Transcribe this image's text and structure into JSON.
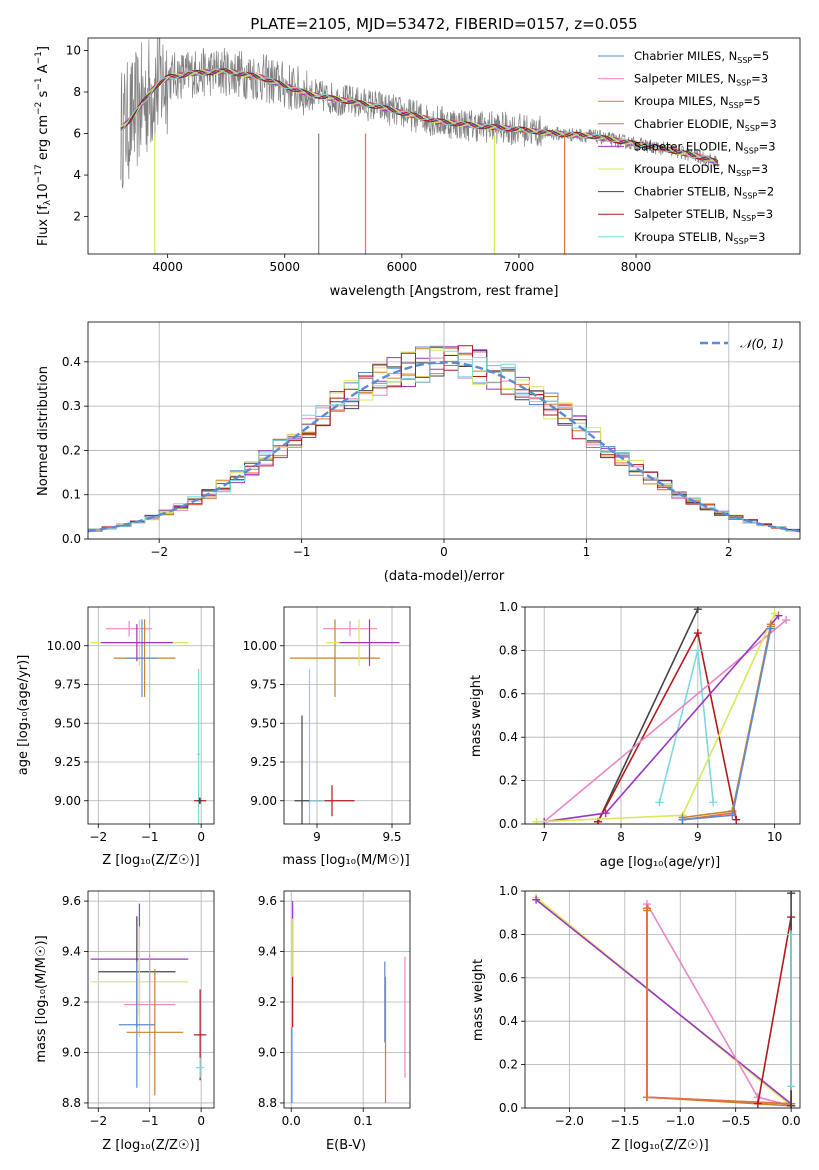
{
  "chart_data": [
    {
      "id": "spectrum",
      "type": "line",
      "title": "PLATE=2105, MJD=53472, FIBERID=0157, z=0.055",
      "xlabel": "wavelength [Angstrom, rest frame]",
      "ylabel_parts": [
        "Flux [f",
        "λ",
        "10",
        "−17",
        " erg cm",
        "−2",
        " s",
        "−1",
        " A",
        "−1",
        "]"
      ],
      "xlim": [
        3320,
        9400
      ],
      "ylim": [
        0.2,
        10.6
      ],
      "xticks": [
        4000,
        5000,
        6000,
        7000,
        8000
      ],
      "yticks": [
        2,
        4,
        6,
        8,
        10
      ],
      "grid": false,
      "legend_position": "top-right",
      "legend": [
        {
          "base": "Chabrier MILES, N",
          "sub": "SSP",
          "tail": "=5",
          "color": "#5b8bd6"
        },
        {
          "base": "Salpeter MILES, N",
          "sub": "SSP",
          "tail": "=3",
          "color": "#e887c4"
        },
        {
          "base": "Kroupa MILES, N",
          "sub": "SSP",
          "tail": "=5",
          "color": "#c8822a"
        },
        {
          "base": "Chabrier ELODIE, N",
          "sub": "SSP",
          "tail": "=3",
          "color": "#e8703a"
        },
        {
          "base": "Salpeter ELODIE, N",
          "sub": "SSP",
          "tail": "=3",
          "color": "#9b36c4"
        },
        {
          "base": "Kroupa ELODIE, N",
          "sub": "SSP",
          "tail": "=3",
          "color": "#d8e85a"
        },
        {
          "base": "Chabrier STELIB, N",
          "sub": "SSP",
          "tail": "=2",
          "color": "#444444"
        },
        {
          "base": "Salpeter STELIB, N",
          "sub": "SSP",
          "tail": "=3",
          "color": "#b01a1a"
        },
        {
          "base": "Kroupa STELIB, N",
          "sub": "SSP",
          "tail": "=3",
          "color": "#7dd8e0"
        }
      ],
      "observed_color": "#808080",
      "continuum": [
        [
          3600,
          6.2
        ],
        [
          3700,
          6.8
        ],
        [
          3800,
          7.6
        ],
        [
          3900,
          8.3
        ],
        [
          4000,
          8.7
        ],
        [
          4200,
          8.9
        ],
        [
          4500,
          9.0
        ],
        [
          4800,
          8.7
        ],
        [
          5000,
          8.3
        ],
        [
          5200,
          7.9
        ],
        [
          5500,
          7.6
        ],
        [
          5800,
          7.3
        ],
        [
          6000,
          7.0
        ],
        [
          6300,
          6.6
        ],
        [
          6600,
          6.4
        ],
        [
          7000,
          6.2
        ],
        [
          7300,
          6.0
        ],
        [
          7600,
          5.9
        ],
        [
          8000,
          5.5
        ],
        [
          8300,
          5.2
        ],
        [
          8600,
          4.8
        ],
        [
          8700,
          4.6
        ]
      ]
    },
    {
      "id": "residuals",
      "type": "line",
      "xlabel": "(data-model)/error",
      "ylabel": "Normed distribution",
      "xlim": [
        -2.5,
        2.5
      ],
      "ylim": [
        0.0,
        0.49
      ],
      "xticks": [
        -2,
        -1,
        0,
        1,
        2
      ],
      "yticks": [
        0.0,
        0.1,
        0.2,
        0.3,
        0.4
      ],
      "grid": true,
      "legend_position": "top-right",
      "normal_label": "𝒩(0, 1)",
      "normal_color": "#5b8bd6",
      "bin_width": 0.1,
      "series": [
        {
          "name": "Chabrier MILES",
          "color": "#5b8bd6"
        },
        {
          "name": "Salpeter MILES",
          "color": "#e887c4"
        },
        {
          "name": "Kroupa MILES",
          "color": "#c8822a"
        },
        {
          "name": "Chabrier ELODIE",
          "color": "#e8703a"
        },
        {
          "name": "Salpeter ELODIE",
          "color": "#9b36c4"
        },
        {
          "name": "Kroupa ELODIE",
          "color": "#d8e85a"
        },
        {
          "name": "Chabrier STELIB",
          "color": "#444444"
        },
        {
          "name": "Salpeter STELIB",
          "color": "#b01a1a"
        },
        {
          "name": "Kroupa STELIB",
          "color": "#7dd8e0"
        }
      ]
    },
    {
      "id": "age-vs-Z",
      "type": "scatter",
      "xlabel": "Z [log₁₀(Z/Z☉)]",
      "ylabel": "age  [log₁₀(age/yr)]",
      "xlim": [
        -2.2,
        0.25
      ],
      "ylim": [
        8.85,
        10.25
      ],
      "xticks": [
        -2,
        -1,
        0
      ],
      "yticks": [
        9.0,
        9.25,
        9.5,
        9.75,
        10.0
      ],
      "ytick_labels": [
        "9.00",
        "9.25",
        "9.50",
        "9.75",
        "10.00"
      ],
      "grid": true,
      "points": [
        {
          "x": -1.4,
          "y": 10.11,
          "xerr": 0.45,
          "yerr": 0.05,
          "color": "#e887c4"
        },
        {
          "x": -1.2,
          "y": 10.02,
          "xerr": 0.95,
          "yerr": 0.15,
          "color": "#d8e85a"
        },
        {
          "x": -1.1,
          "y": 9.92,
          "xerr": 0.6,
          "yerr": 0.25,
          "color": "#c8822a"
        },
        {
          "x": -1.15,
          "y": 9.92,
          "xerr": 0.3,
          "yerr": 0.25,
          "color": "#5b8bd6"
        },
        {
          "x": -1.25,
          "y": 10.02,
          "xerr": 0.7,
          "yerr": 0.12,
          "color": "#9b36c4"
        },
        {
          "x": -0.05,
          "y": 9.3,
          "xerr": 0.03,
          "yerr": 0.55,
          "color": "#7dd8e0"
        },
        {
          "x": -0.02,
          "y": 9.0,
          "xerr": 0.12,
          "yerr": 0.02,
          "color": "#b01a1a"
        },
        {
          "x": -0.03,
          "y": 9.0,
          "xerr": 0.05,
          "yerr": 0.02,
          "color": "#444444"
        }
      ]
    },
    {
      "id": "age-vs-mass",
      "type": "scatter",
      "xlabel": "mass [log₁₀(M/M☉)]",
      "xlim": [
        8.78,
        9.62
      ],
      "ylim": [
        8.85,
        10.25
      ],
      "xticks": [
        9.0,
        9.5
      ],
      "yticks": [
        9.0,
        9.25,
        9.5,
        9.75,
        10.0
      ],
      "ytick_labels": [
        "9.00",
        "9.25",
        "9.50",
        "9.75",
        "10.00"
      ],
      "grid": true,
      "points": [
        {
          "x": 9.22,
          "y": 10.11,
          "xerr": 0.18,
          "yerr": 0.05,
          "color": "#e887c4"
        },
        {
          "x": 9.12,
          "y": 9.92,
          "xerr": 0.3,
          "yerr": 0.25,
          "color": "#c8822a"
        },
        {
          "x": 9.28,
          "y": 10.02,
          "xerr": 0.22,
          "yerr": 0.15,
          "color": "#d8e85a"
        },
        {
          "x": 9.35,
          "y": 10.02,
          "xerr": 0.2,
          "yerr": 0.15,
          "color": "#9b36c4"
        },
        {
          "x": 9.1,
          "y": 9.0,
          "xerr": 0.15,
          "yerr": 0.1,
          "color": "#b01a1a"
        },
        {
          "x": 8.95,
          "y": 9.0,
          "xerr": 0.1,
          "yerr": 0.85,
          "color": "#7dd8e0"
        },
        {
          "x": 8.9,
          "y": 9.0,
          "xerr": 0.05,
          "yerr": 0.55,
          "color": "#444444"
        }
      ]
    },
    {
      "id": "weight-vs-age",
      "type": "line",
      "xlabel": "age  [log₁₀(age/yr)]",
      "ylabel": "mass weight",
      "xlim": [
        6.75,
        10.33
      ],
      "ylim": [
        0.0,
        1.0
      ],
      "xticks": [
        7,
        8,
        9,
        10
      ],
      "yticks": [
        0.0,
        0.2,
        0.4,
        0.6,
        0.8,
        1.0
      ],
      "grid": true,
      "series": [
        {
          "name": "Chabrier STELIB",
          "color": "#444444",
          "x": [
            7.7,
            9.0
          ],
          "y": [
            0.01,
            0.99
          ]
        },
        {
          "name": "Salpeter STELIB",
          "color": "#b01a1a",
          "x": [
            7.7,
            9.0,
            9.5
          ],
          "y": [
            0.01,
            0.88,
            0.02
          ]
        },
        {
          "name": "Kroupa STELIB",
          "color": "#7dd8e0",
          "x": [
            8.5,
            9.0,
            9.2
          ],
          "y": [
            0.1,
            0.8,
            0.1
          ]
        },
        {
          "name": "Salpeter MILES",
          "color": "#e887c4",
          "x": [
            7.0,
            10.15
          ],
          "y": [
            0.01,
            0.94
          ]
        },
        {
          "name": "Salpeter ELODIE",
          "color": "#9b36c4",
          "x": [
            7.0,
            7.8,
            10.05
          ],
          "y": [
            0.01,
            0.05,
            0.96
          ]
        },
        {
          "name": "Kroupa ELODIE",
          "color": "#d8e85a",
          "x": [
            6.9,
            8.8,
            10.0
          ],
          "y": [
            0.01,
            0.04,
            0.97
          ]
        },
        {
          "name": "Chabrier ELODIE",
          "color": "#e8703a",
          "x": [
            8.8,
            9.45,
            9.95
          ],
          "y": [
            0.02,
            0.05,
            0.92
          ]
        },
        {
          "name": "Kroupa MILES",
          "color": "#c8822a",
          "x": [
            8.8,
            9.45,
            9.95
          ],
          "y": [
            0.03,
            0.06,
            0.91
          ]
        },
        {
          "name": "Chabrier MILES",
          "color": "#5b8bd6",
          "x": [
            8.8,
            9.45,
            9.95
          ],
          "y": [
            0.02,
            0.04,
            0.9
          ]
        }
      ]
    },
    {
      "id": "mass-vs-Z",
      "type": "scatter",
      "xlabel": "Z [log₁₀(Z/Z☉)]",
      "ylabel": "mass [log₁₀(M/M☉)]",
      "xlim": [
        -2.2,
        0.25
      ],
      "ylim": [
        8.78,
        9.64
      ],
      "xticks": [
        -2,
        -1,
        0
      ],
      "yticks": [
        8.8,
        9.0,
        9.2,
        9.4,
        9.6
      ],
      "ytick_labels": [
        "8.8",
        "9.0",
        "9.2",
        "9.4",
        "9.6"
      ],
      "grid": true,
      "points": [
        {
          "x": -1.2,
          "y": 9.37,
          "xerr": 0.95,
          "yerr": 0.22,
          "color": "#9b36c4"
        },
        {
          "x": -1.25,
          "y": 9.32,
          "xerr": 0.75,
          "yerr": 0.22,
          "color": "#444444"
        },
        {
          "x": -1.2,
          "y": 9.28,
          "xerr": 0.95,
          "yerr": 0.22,
          "color": "#d8e85a"
        },
        {
          "x": -1.0,
          "y": 9.19,
          "xerr": 0.5,
          "yerr": 0.2,
          "color": "#e887c4"
        },
        {
          "x": -1.25,
          "y": 9.11,
          "xerr": 0.35,
          "yerr": 0.25,
          "color": "#5b8bd6"
        },
        {
          "x": -0.9,
          "y": 9.08,
          "xerr": 0.55,
          "yerr": 0.25,
          "color": "#c8822a"
        },
        {
          "x": -0.02,
          "y": 9.07,
          "xerr": 0.12,
          "yerr": 0.18,
          "color": "#b01a1a"
        },
        {
          "x": -0.02,
          "y": 8.94,
          "xerr": 0.08,
          "yerr": 0.04,
          "color": "#7dd8e0"
        }
      ]
    },
    {
      "id": "mass-vs-ebv",
      "type": "scatter",
      "xlabel": "E(B-V)",
      "xlim": [
        -0.01,
        0.165
      ],
      "ylim": [
        8.78,
        9.64
      ],
      "xticks": [
        0.0,
        0.1
      ],
      "xtick_labels": [
        "0.0",
        "0.1"
      ],
      "yticks": [
        8.8,
        9.0,
        9.2,
        9.4,
        9.6
      ],
      "ytick_labels": [
        "8.8",
        "9.0",
        "9.2",
        "9.4",
        "9.6"
      ],
      "grid": true,
      "points": [
        {
          "x": 0.002,
          "y": 9.45,
          "xerr": 0,
          "yerr": 0.15,
          "color": "#9b36c4"
        },
        {
          "x": 0.002,
          "y": 9.35,
          "xerr": 0,
          "yerr": 0.18,
          "color": "#d8e85a"
        },
        {
          "x": 0.002,
          "y": 9.2,
          "xerr": 0,
          "yerr": 0.1,
          "color": "#b01a1a"
        },
        {
          "x": 0.001,
          "y": 8.95,
          "xerr": 0,
          "yerr": 0.15,
          "color": "#5b8bd6"
        },
        {
          "x": 0.13,
          "y": 9.2,
          "xerr": 0,
          "yerr": 0.16,
          "color": "#5b8bd6"
        },
        {
          "x": 0.131,
          "y": 9.05,
          "xerr": 0,
          "yerr": 0.25,
          "color": "#c8822a"
        },
        {
          "x": 0.158,
          "y": 9.14,
          "xerr": 0,
          "yerr": 0.24,
          "color": "#e887c4"
        }
      ]
    },
    {
      "id": "weight-vs-Z",
      "type": "line",
      "xlabel": "Z [log₁₀(Z/Z☉)]",
      "ylabel": "mass weight",
      "xlim": [
        -2.4,
        0.08
      ],
      "ylim": [
        0.0,
        1.0
      ],
      "xticks": [
        -2.0,
        -1.5,
        -1.0,
        -0.5,
        0.0
      ],
      "xtick_labels": [
        "−2.0",
        "−1.5",
        "−1.0",
        "−0.5",
        "0.0"
      ],
      "yticks": [
        0.0,
        0.2,
        0.4,
        0.6,
        0.8,
        1.0
      ],
      "grid": true,
      "series": [
        {
          "name": "Kroupa ELODIE",
          "color": "#d8e85a",
          "x": [
            -2.3,
            0.0
          ],
          "y": [
            0.97,
            0.01
          ]
        },
        {
          "name": "Salpeter ELODIE",
          "color": "#9b36c4",
          "x": [
            -2.3,
            0.0
          ],
          "y": [
            0.96,
            0.02
          ]
        },
        {
          "name": "Salpeter MILES",
          "color": "#e887c4",
          "x": [
            -1.3,
            -0.3,
            0.0
          ],
          "y": [
            0.94,
            0.05,
            0.01
          ]
        },
        {
          "name": "Chabrier MILES",
          "color": "#5b8bd6",
          "x": [
            -1.3,
            -1.3,
            0.0
          ],
          "y": [
            0.92,
            0.05,
            0.02
          ]
        },
        {
          "name": "Kroupa MILES",
          "color": "#c8822a",
          "x": [
            -1.3,
            -1.3,
            0.0
          ],
          "y": [
            0.91,
            0.05,
            0.01
          ]
        },
        {
          "name": "Chabrier ELODIE",
          "color": "#e8703a",
          "x": [
            -1.3,
            -1.3,
            0.0
          ],
          "y": [
            0.92,
            0.05,
            0.02
          ]
        },
        {
          "name": "Salpeter STELIB",
          "color": "#b01a1a",
          "x": [
            -0.3,
            0.0,
            0.0
          ],
          "y": [
            0.02,
            0.88,
            0.01
          ]
        },
        {
          "name": "Chabrier STELIB",
          "color": "#444444",
          "x": [
            0.0,
            0.0
          ],
          "y": [
            0.99,
            0.01
          ]
        },
        {
          "name": "Kroupa STELIB",
          "color": "#7dd8e0",
          "x": [
            0.0,
            0.0
          ],
          "y": [
            0.8,
            0.1
          ]
        }
      ]
    }
  ]
}
